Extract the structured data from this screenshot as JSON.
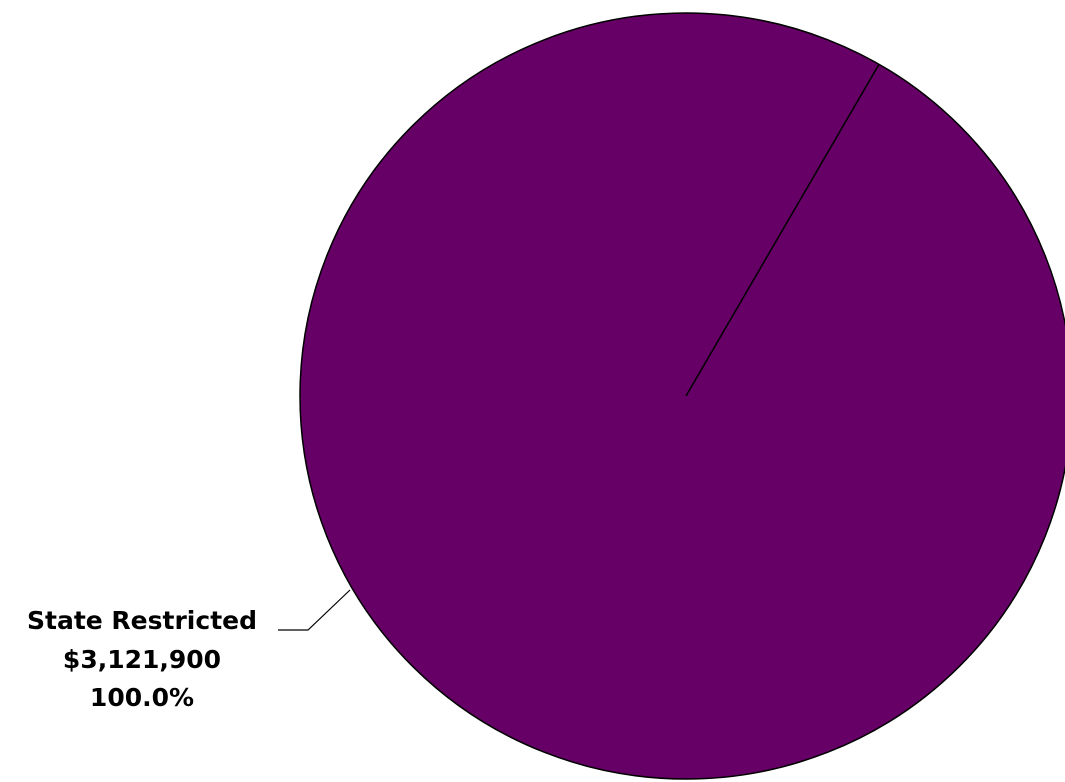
{
  "chart_data": {
    "type": "pie",
    "title": "",
    "slices": [
      {
        "label": "State Restricted",
        "value": 3121900,
        "value_label": "$3,121,900",
        "percent_label": "100.0%",
        "percent": 100.0,
        "color": "#660066"
      }
    ],
    "legend": "none",
    "start_angle_deg": 60
  }
}
